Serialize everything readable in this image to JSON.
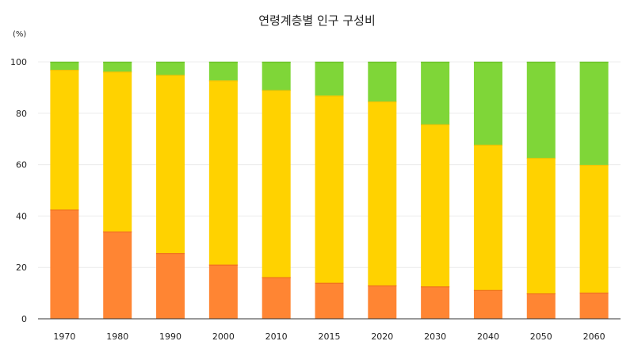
{
  "chart_data": {
    "type": "bar",
    "stacked": true,
    "title": "연령계층별 인구 구성비",
    "y_unit": "(%)",
    "ylim": [
      0,
      100
    ],
    "yticks": [
      0,
      20,
      40,
      60,
      80,
      100
    ],
    "grid": true,
    "categories": [
      "1970",
      "1980",
      "1990",
      "2000",
      "2010",
      "2015",
      "2020",
      "2030",
      "2040",
      "2050",
      "2060"
    ],
    "series": [
      {
        "color": "#ff8533",
        "edge": "#f07020",
        "values": [
          42.5,
          34.0,
          25.6,
          21.1,
          16.2,
          14.0,
          13.0,
          12.6,
          11.2,
          9.9,
          10.2
        ]
      },
      {
        "color": "#ffd200",
        "edge": "#f2c400",
        "values": [
          54.4,
          62.2,
          69.3,
          71.7,
          72.8,
          72.9,
          71.6,
          63.1,
          56.5,
          52.7,
          49.7
        ]
      },
      {
        "color": "#7fd638",
        "edge": "#6cc42a",
        "values": [
          3.1,
          3.8,
          5.1,
          7.2,
          11.0,
          13.1,
          15.4,
          24.3,
          32.3,
          37.4,
          40.1
        ]
      }
    ]
  }
}
